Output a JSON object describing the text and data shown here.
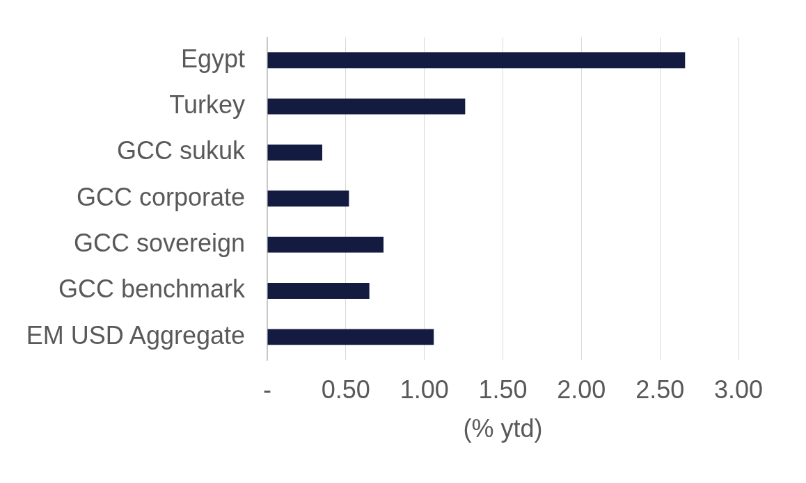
{
  "chart_data": {
    "type": "bar",
    "orientation": "horizontal",
    "categories": [
      "Egypt",
      "Turkey",
      "GCC sukuk",
      "GCC corporate",
      "GCC sovereign",
      "GCC benchmark",
      "EM USD Aggregate"
    ],
    "values": [
      2.66,
      1.26,
      0.35,
      0.52,
      0.74,
      0.65,
      1.06
    ],
    "color": "#131c40",
    "xlabel": "(% ytd)",
    "xlim": [
      0,
      3
    ],
    "xticks": [
      {
        "value": 0,
        "label": "-"
      },
      {
        "value": 0.5,
        "label": "0.50"
      },
      {
        "value": 1,
        "label": "1.00"
      },
      {
        "value": 1.5,
        "label": "1.50"
      },
      {
        "value": 2,
        "label": "2.00"
      },
      {
        "value": 2.5,
        "label": "2.50"
      },
      {
        "value": 3,
        "label": "3.00"
      }
    ],
    "grid": "x"
  }
}
